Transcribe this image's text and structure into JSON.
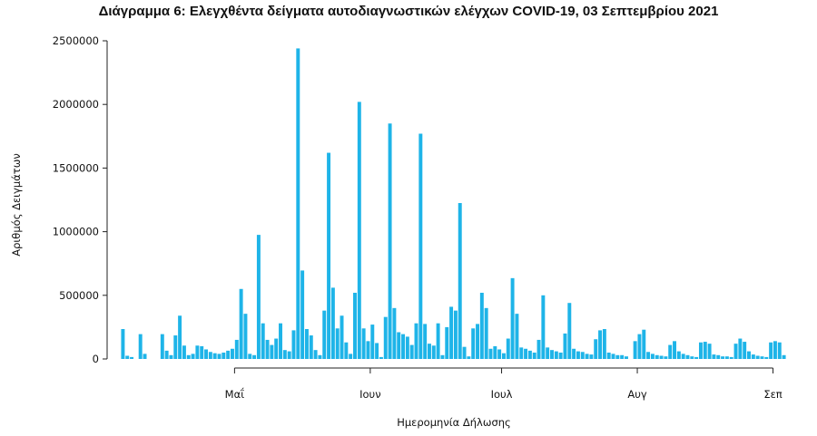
{
  "chart_data": {
    "type": "bar",
    "title": "Διάγραμμα 6: Ελεγχθέντα δείγματα αυτοδιαγνωστικών ελέγχων COVID-19, 03 Σεπτεμβρίου 2021",
    "xlabel": "Ημερομηνία Δήλωσης",
    "ylabel": "Αριθμός Δειγμάτων",
    "ylim": [
      0,
      2500000
    ],
    "y_ticks": [
      0,
      500000,
      1000000,
      1500000,
      2000000,
      2500000
    ],
    "y_tick_labels": [
      "0",
      "500000",
      "1000000",
      "1500000",
      "2000000",
      "2500000"
    ],
    "x_tick_labels": [
      "Μαΐ",
      "Ιουν",
      "Ιουλ",
      "Αυγ",
      "Σεπ"
    ],
    "x_tick_dates": [
      "2021-05-01",
      "2021-06-01",
      "2021-07-01",
      "2021-08-01",
      "2021-09-01"
    ],
    "x_range": [
      "2021-04-05",
      "2021-09-03"
    ],
    "color": "#1eb4e8",
    "grid": false,
    "legend": "none",
    "x": [
      "2021-04-05",
      "2021-04-06",
      "2021-04-07",
      "2021-04-08",
      "2021-04-09",
      "2021-04-10",
      "2021-04-11",
      "2021-04-12",
      "2021-04-13",
      "2021-04-14",
      "2021-04-15",
      "2021-04-16",
      "2021-04-17",
      "2021-04-18",
      "2021-04-19",
      "2021-04-20",
      "2021-04-21",
      "2021-04-22",
      "2021-04-23",
      "2021-04-24",
      "2021-04-25",
      "2021-04-26",
      "2021-04-27",
      "2021-04-28",
      "2021-04-29",
      "2021-04-30",
      "2021-05-01",
      "2021-05-02",
      "2021-05-03",
      "2021-05-04",
      "2021-05-05",
      "2021-05-06",
      "2021-05-07",
      "2021-05-08",
      "2021-05-09",
      "2021-05-10",
      "2021-05-11",
      "2021-05-12",
      "2021-05-13",
      "2021-05-14",
      "2021-05-15",
      "2021-05-16",
      "2021-05-17",
      "2021-05-18",
      "2021-05-19",
      "2021-05-20",
      "2021-05-21",
      "2021-05-22",
      "2021-05-23",
      "2021-05-24",
      "2021-05-25",
      "2021-05-26",
      "2021-05-27",
      "2021-05-28",
      "2021-05-29",
      "2021-05-30",
      "2021-05-31",
      "2021-06-01",
      "2021-06-02",
      "2021-06-03",
      "2021-06-04",
      "2021-06-05",
      "2021-06-06",
      "2021-06-07",
      "2021-06-08",
      "2021-06-09",
      "2021-06-10",
      "2021-06-11",
      "2021-06-12",
      "2021-06-13",
      "2021-06-14",
      "2021-06-15",
      "2021-06-16",
      "2021-06-17",
      "2021-06-18",
      "2021-06-19",
      "2021-06-20",
      "2021-06-21",
      "2021-06-22",
      "2021-06-23",
      "2021-06-24",
      "2021-06-25",
      "2021-06-26",
      "2021-06-27",
      "2021-06-28",
      "2021-06-29",
      "2021-06-30",
      "2021-07-01",
      "2021-07-02",
      "2021-07-03",
      "2021-07-04",
      "2021-07-05",
      "2021-07-06",
      "2021-07-07",
      "2021-07-08",
      "2021-07-09",
      "2021-07-10",
      "2021-07-11",
      "2021-07-12",
      "2021-07-13",
      "2021-07-14",
      "2021-07-15",
      "2021-07-16",
      "2021-07-17",
      "2021-07-18",
      "2021-07-19",
      "2021-07-20",
      "2021-07-21",
      "2021-07-22",
      "2021-07-23",
      "2021-07-24",
      "2021-07-25",
      "2021-07-26",
      "2021-07-27",
      "2021-07-28",
      "2021-07-29",
      "2021-07-30",
      "2021-07-31",
      "2021-08-01",
      "2021-08-02",
      "2021-08-03",
      "2021-08-04",
      "2021-08-05",
      "2021-08-06",
      "2021-08-07",
      "2021-08-08",
      "2021-08-09",
      "2021-08-10",
      "2021-08-11",
      "2021-08-12",
      "2021-08-13",
      "2021-08-14",
      "2021-08-15",
      "2021-08-16",
      "2021-08-17",
      "2021-08-18",
      "2021-08-19",
      "2021-08-20",
      "2021-08-21",
      "2021-08-22",
      "2021-08-23",
      "2021-08-24",
      "2021-08-25",
      "2021-08-26",
      "2021-08-27",
      "2021-08-28",
      "2021-08-29",
      "2021-08-30",
      "2021-08-31",
      "2021-09-01",
      "2021-09-02",
      "2021-09-03"
    ],
    "values": [
      235000,
      25000,
      15000,
      0,
      195000,
      40000,
      0,
      0,
      0,
      195000,
      65000,
      30000,
      185000,
      340000,
      105000,
      30000,
      40000,
      105000,
      100000,
      75000,
      55000,
      45000,
      40000,
      50000,
      65000,
      80000,
      150000,
      550000,
      355000,
      40000,
      30000,
      975000,
      280000,
      150000,
      110000,
      160000,
      280000,
      70000,
      60000,
      225000,
      2440000,
      695000,
      235000,
      185000,
      70000,
      30000,
      380000,
      1620000,
      560000,
      240000,
      340000,
      130000,
      40000,
      520000,
      2020000,
      240000,
      140000,
      270000,
      125000,
      15000,
      330000,
      1850000,
      400000,
      210000,
      195000,
      175000,
      110000,
      280000,
      1770000,
      275000,
      120000,
      105000,
      280000,
      30000,
      250000,
      410000,
      380000,
      1225000,
      95000,
      20000,
      240000,
      275000,
      520000,
      400000,
      80000,
      100000,
      75000,
      45000,
      160000,
      635000,
      355000,
      90000,
      80000,
      65000,
      50000,
      150000,
      500000,
      90000,
      70000,
      60000,
      50000,
      200000,
      440000,
      80000,
      60000,
      55000,
      40000,
      35000,
      155000,
      225000,
      235000,
      50000,
      40000,
      30000,
      30000,
      20000,
      0,
      140000,
      195000,
      230000,
      55000,
      40000,
      30000,
      25000,
      20000,
      110000,
      140000,
      60000,
      40000,
      30000,
      20000,
      15000,
      130000,
      135000,
      120000,
      35000,
      30000,
      20000,
      20000,
      15000,
      120000,
      160000,
      135000,
      60000,
      35000,
      25000,
      20000,
      15000,
      130000,
      140000,
      130000,
      30000
    ]
  }
}
